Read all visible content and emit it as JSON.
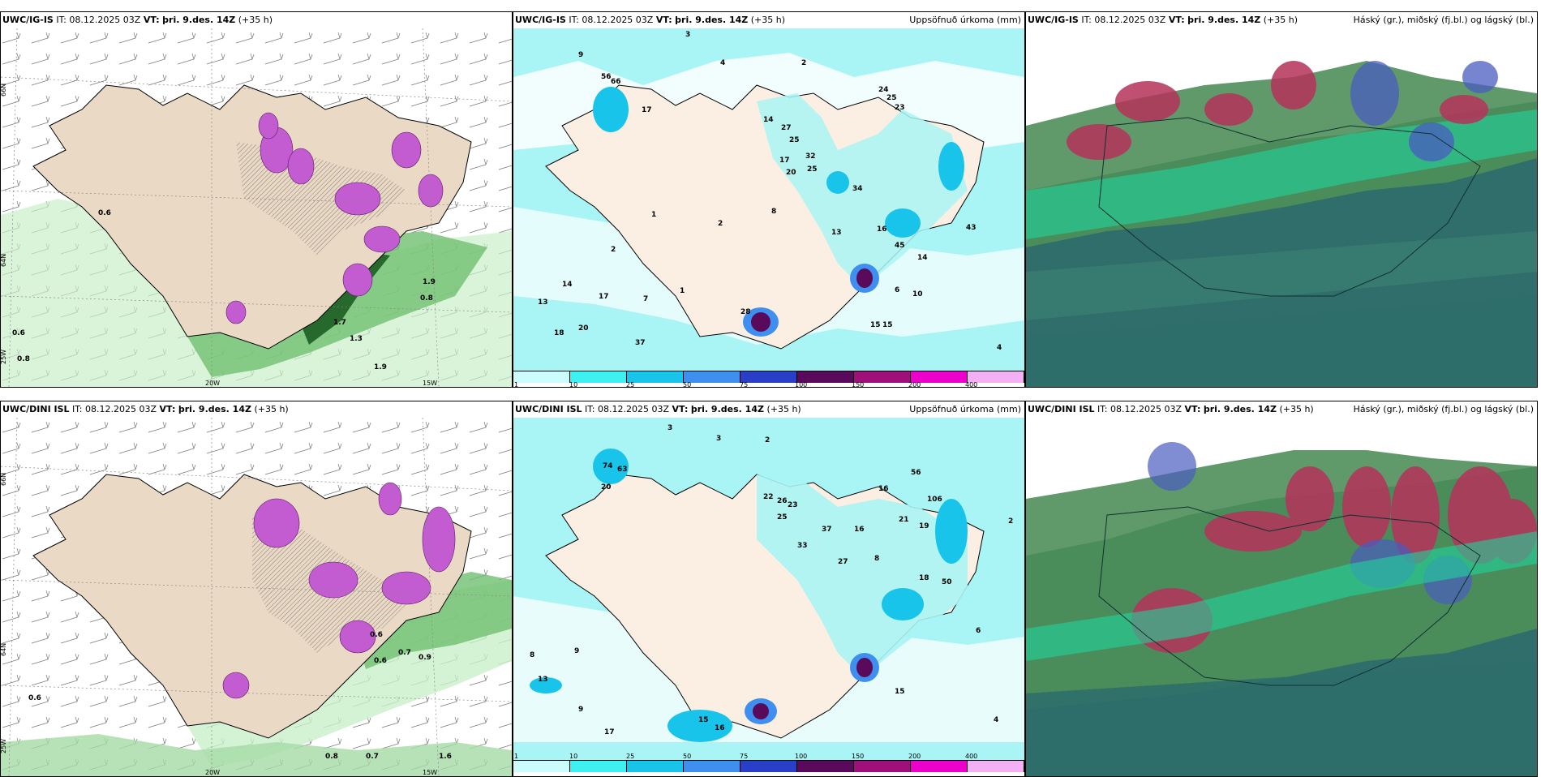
{
  "panels": [
    {
      "id": "top-left",
      "model": "UWC/IG-IS",
      "it_label": "IT:",
      "it_value": "08.12.2025 03Z",
      "vt_label": "VT:",
      "vt_value": "þri. 9.des. 14Z",
      "lead": "(+35 h)",
      "right_title": "",
      "axis_labels": [
        "66N",
        "64N",
        "25W",
        "20W",
        "15W"
      ]
    },
    {
      "id": "top-middle",
      "model": "UWC/IG-IS",
      "it_label": "IT:",
      "it_value": "08.12.2025 03Z",
      "vt_label": "VT:",
      "vt_value": "þri. 9.des. 14Z",
      "lead": "(+35 h)",
      "right_title": "Uppsöfnuð úrkoma (mm)"
    },
    {
      "id": "top-right",
      "model": "UWC/IG-IS",
      "it_label": "IT:",
      "it_value": "08.12.2025 03Z",
      "vt_label": "VT:",
      "vt_value": "þri. 9.des. 14Z",
      "lead": "(+35 h)",
      "right_title": "Háský (gr.), miðský (fj.bl.) og lágský (bl.)"
    },
    {
      "id": "bottom-left",
      "model": "UWC/DINI ISL",
      "it_label": "IT:",
      "it_value": "08.12.2025 03Z",
      "vt_label": "VT:",
      "vt_value": "þri. 9.des. 14Z",
      "lead": "(+35 h)",
      "right_title": "",
      "axis_labels": [
        "66N",
        "64N",
        "25W",
        "20W",
        "15W"
      ]
    },
    {
      "id": "bottom-middle",
      "model": "UWC/DINI ISL",
      "it_label": "IT:",
      "it_value": "08.12.2025 03Z",
      "vt_label": "VT:",
      "vt_value": "þri. 9.des. 14Z",
      "lead": "(+35 h)",
      "right_title": "Uppsöfnuð úrkoma (mm)"
    },
    {
      "id": "bottom-right",
      "model": "UWC/DINI ISL",
      "it_label": "IT:",
      "it_value": "08.12.2025 03Z",
      "vt_label": "VT:",
      "vt_value": "þri. 9.des. 14Z",
      "lead": "(+35 h)",
      "right_title": "Háský (gr.), miðský (fj.bl.) og lágský (bl.)"
    }
  ],
  "colorbar": {
    "labels": [
      "1",
      "10",
      "25",
      "50",
      "75",
      "100",
      "150",
      "200",
      "400"
    ],
    "colors": [
      "#cdfcfc",
      "#3ff0f0",
      "#19c4ea",
      "#3e8fef",
      "#2a3fc7",
      "#5a0a5a",
      "#a0107a",
      "#ee00cc",
      "#f4b0f4"
    ]
  },
  "precip_top_values": [
    "9",
    "3",
    "2",
    "4",
    "24",
    "25",
    "23",
    "56",
    "66",
    "17",
    "14",
    "27",
    "25",
    "32",
    "25",
    "17",
    "20",
    "34",
    "16",
    "43",
    "45",
    "14",
    "13",
    "28",
    "37",
    "20",
    "18",
    "14",
    "13",
    "17",
    "7",
    "1",
    "2",
    "6",
    "10",
    "15",
    "15",
    "4",
    "8",
    "2",
    "1"
  ],
  "precip_bottom_values": [
    "3",
    "3",
    "2",
    "74",
    "63",
    "20",
    "22",
    "26",
    "23",
    "25",
    "33",
    "16",
    "18",
    "37",
    "27",
    "21",
    "56",
    "106",
    "19",
    "16",
    "8",
    "13",
    "15",
    "17",
    "16",
    "4",
    "6",
    "2",
    "9",
    "8",
    "9",
    "15",
    "50"
  ],
  "left_top_values": [
    "0.6",
    "0.6",
    "0.8",
    "1.7",
    "1.3",
    "1.9",
    "0.8",
    "1.9"
  ],
  "left_bottom_values": [
    "0.6",
    "0.6",
    "0.7",
    "0.9",
    "0.8",
    "0.7",
    "1.6",
    "0.6"
  ],
  "colors": {
    "land": "#ead9c5",
    "land_light": "#f7ebdf",
    "green_light": "#9fe3a2",
    "green_dark": "#1e6b24",
    "purple": "#c35bd1",
    "cyan": "#a9f4f4",
    "cloud_teal": "#2f6e6b",
    "cloud_green": "#4f8f5a",
    "cloud_red": "#b5325a",
    "cloud_blue": "#4a5cc0"
  }
}
